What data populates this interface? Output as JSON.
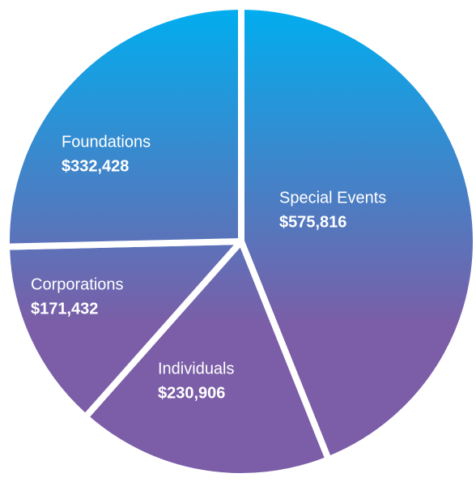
{
  "chart_data": {
    "type": "pie",
    "categories": [
      "Special Events",
      "Individuals",
      "Corporations",
      "Foundations"
    ],
    "values": [
      575816,
      230906,
      171432,
      332428
    ],
    "value_labels": [
      "$575,816",
      "$230,906",
      "$171,432",
      "$332,428"
    ],
    "gradient": [
      "#00aeef",
      "#7b5ea7"
    ]
  }
}
